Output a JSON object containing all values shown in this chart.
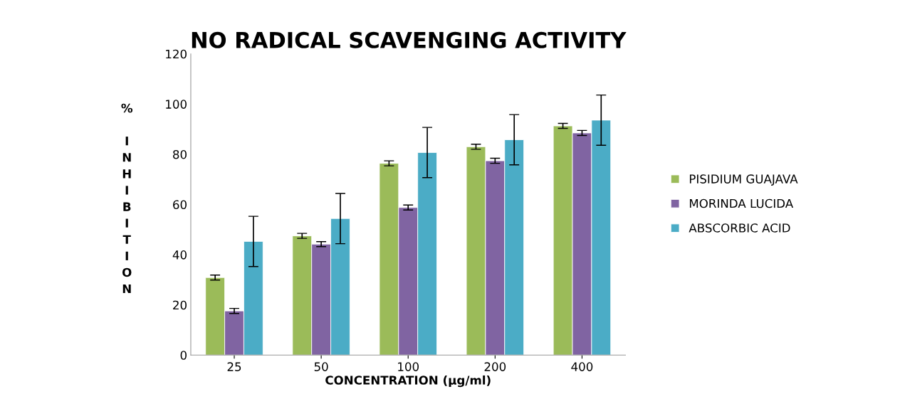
{
  "chart_data": {
    "type": "bar",
    "title": "NO RADICAL SCAVENGING ACTIVITY",
    "xlabel": "CONCENTRATION (µg/ml)",
    "ylabel": "% INHIBITION",
    "categories": [
      "25",
      "50",
      "100",
      "200",
      "400"
    ],
    "series": [
      {
        "name": "PISIDIUM GUAJAVA",
        "color": "#9bbb59",
        "values": [
          30.9,
          47.5,
          76.4,
          83.0,
          91.3
        ],
        "errors": [
          1,
          1,
          1,
          1,
          1
        ]
      },
      {
        "name": "MORINDA LUCIDA",
        "color": "#8064a2",
        "values": [
          17.6,
          44.2,
          58.8,
          77.4,
          88.5
        ],
        "errors": [
          1,
          1,
          1,
          1,
          1
        ]
      },
      {
        "name": "ABSCORBIC ACID",
        "color": "#4bacc6",
        "values": [
          45.3,
          54.4,
          80.7,
          85.8,
          93.6
        ],
        "errors": [
          10,
          10,
          10,
          10,
          10
        ]
      }
    ],
    "ylim": [
      0,
      120
    ],
    "yticks": [
      0,
      20,
      40,
      60,
      80,
      100,
      120
    ],
    "grid": false,
    "legend": "right"
  }
}
